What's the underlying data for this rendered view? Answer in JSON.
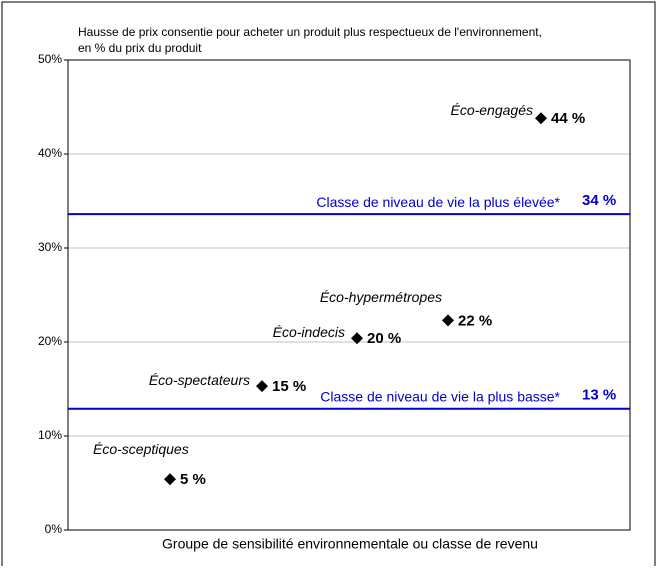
{
  "chart_data": {
    "type": "scatter",
    "title_lines": [
      "Hausse de prix consentie pour acheter un produit plus respectueux de l'environnement,",
      "en % du prix du produit"
    ],
    "x_label": "Groupe de sensibilité environnementale ou classe de revenu",
    "categories": [
      "Éco-sceptiques",
      "Éco-spectateurs",
      "Éco-indecis",
      "Éco-hypermétropes",
      "Éco-engagés"
    ],
    "values": [
      5.4,
      15.3,
      20.4,
      22.3,
      43.8
    ],
    "value_labels": [
      "5 %",
      "15 %",
      "20 %",
      "22 %",
      "44 %"
    ],
    "color": "#000000",
    "ylim": [
      0,
      50
    ],
    "yticks": [
      {
        "value": 0,
        "label": "0%"
      },
      {
        "value": 10,
        "label": "10%"
      },
      {
        "value": 20,
        "label": "20%"
      },
      {
        "value": 30,
        "label": "30%"
      },
      {
        "value": 40,
        "label": "40%"
      },
      {
        "value": 50,
        "label": "50%"
      }
    ],
    "grid": true,
    "reference_lines": [
      {
        "label": "Classe de niveau de vie la plus élevée*",
        "value": 33.6,
        "value_label": "34 %",
        "color": "#0000cc"
      },
      {
        "label": "Classe de niveau de vie la plus basse*",
        "value": 12.9,
        "value_label": "13 %",
        "color": "#0000cc"
      }
    ]
  }
}
